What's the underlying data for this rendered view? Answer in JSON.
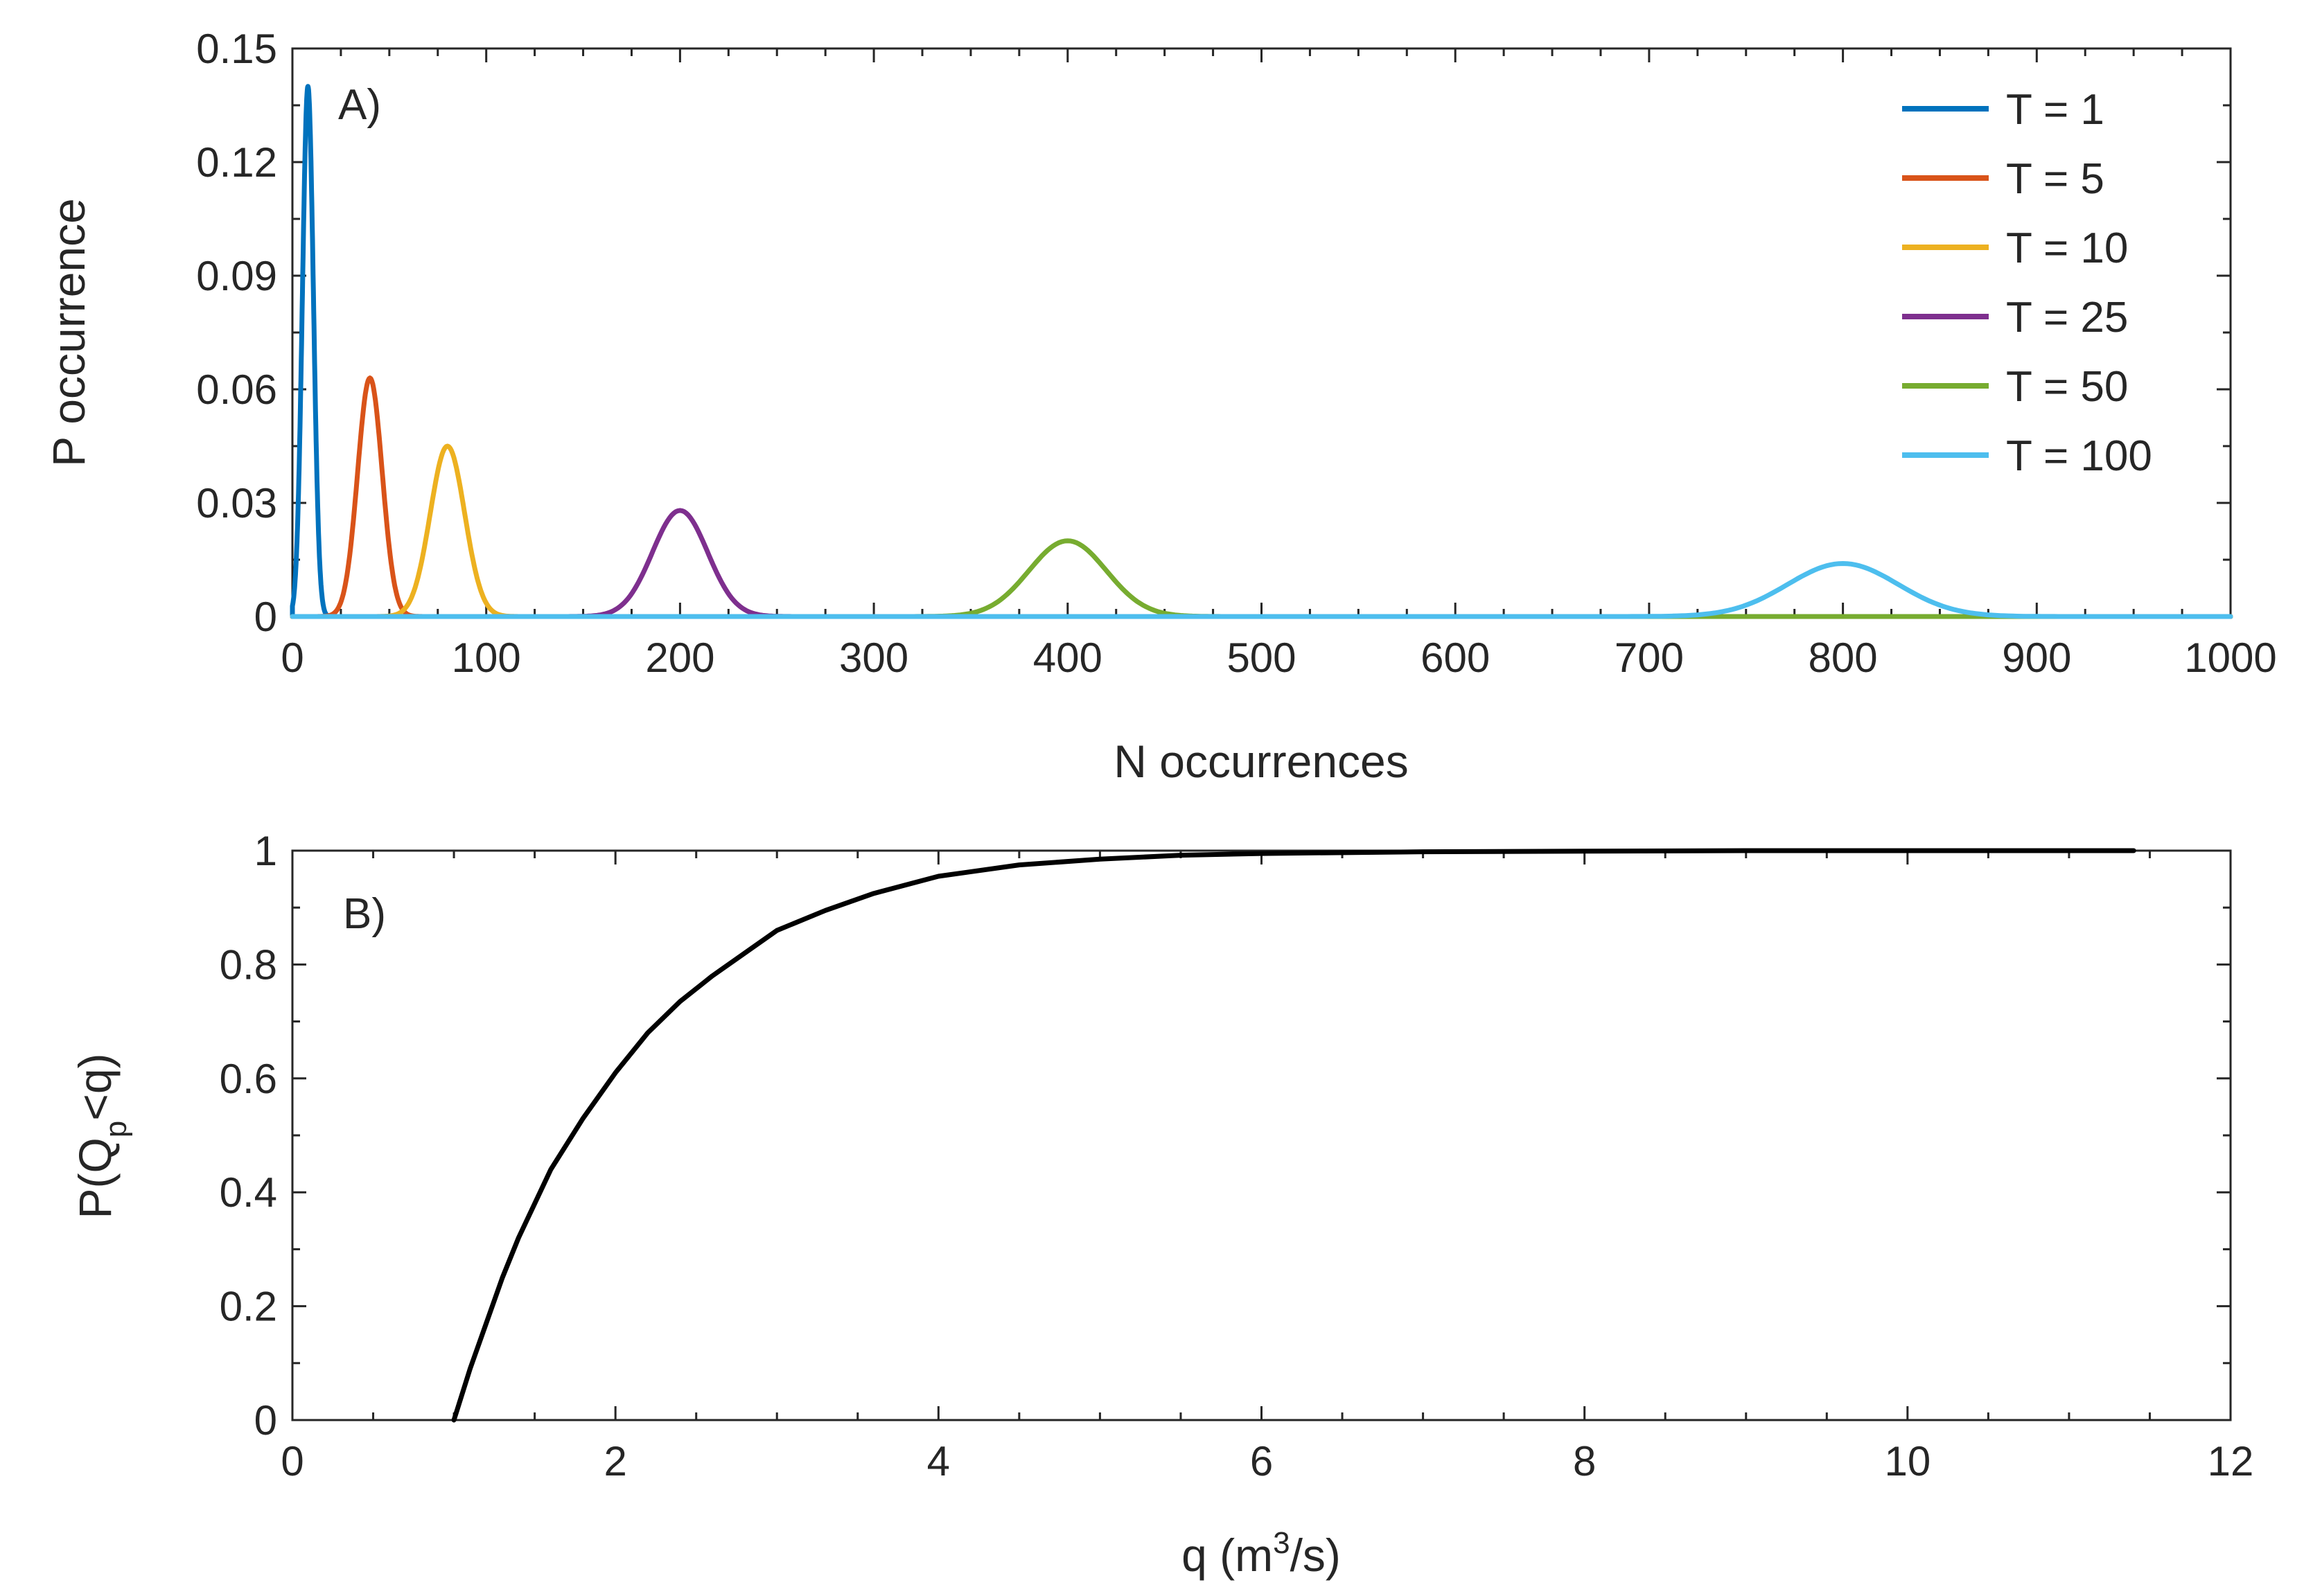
{
  "chart_data": [
    {
      "panel": "A)",
      "type": "line",
      "title": "",
      "xlabel": "N occurrences",
      "ylabel": "P occurrence",
      "xlim": [
        0,
        1000
      ],
      "ylim": [
        0,
        0.15
      ],
      "xticks": [
        0,
        100,
        200,
        300,
        400,
        500,
        600,
        700,
        800,
        900,
        1000
      ],
      "yticks": [
        0,
        0.03,
        0.06,
        0.09,
        0.12,
        0.15
      ],
      "ytick_labels": [
        "0",
        "0.03",
        "0.06",
        "0.09",
        "0.12",
        "0.15"
      ],
      "legend_position": "top-right",
      "series": [
        {
          "name": "T = 1",
          "color": "#0072BD",
          "mean": 8,
          "peak": 0.14
        },
        {
          "name": "T = 5",
          "color": "#D95319",
          "mean": 40,
          "peak": 0.063
        },
        {
          "name": "T = 10",
          "color": "#EDB120",
          "mean": 80,
          "peak": 0.045
        },
        {
          "name": "T = 25",
          "color": "#7E2F8E",
          "mean": 200,
          "peak": 0.028
        },
        {
          "name": "T = 50",
          "color": "#77AC30",
          "mean": 400,
          "peak": 0.02
        },
        {
          "name": "T = 100",
          "color": "#4DBEEE",
          "mean": 800,
          "peak": 0.014
        }
      ]
    },
    {
      "panel": "B)",
      "type": "line",
      "title": "",
      "xlabel_parts": [
        "q (m",
        "3",
        "/s)"
      ],
      "ylabel_parts": [
        "P(Q",
        "p",
        "<q)"
      ],
      "xlim": [
        0,
        12
      ],
      "ylim": [
        0,
        1
      ],
      "xticks": [
        0,
        2,
        4,
        6,
        8,
        10,
        12
      ],
      "yticks": [
        0,
        0.2,
        0.4,
        0.6,
        0.8,
        1
      ],
      "ytick_labels": [
        "0",
        "0.2",
        "0.4",
        "0.6",
        "0.8",
        "1"
      ],
      "series": [
        {
          "name": "P(Qp<q)",
          "color": "#000000",
          "x": [
            1.0,
            1.1,
            1.2,
            1.3,
            1.4,
            1.5,
            1.6,
            1.8,
            2.0,
            2.2,
            2.4,
            2.6,
            2.8,
            3.0,
            3.3,
            3.6,
            4.0,
            4.5,
            5.0,
            5.5,
            6.0,
            7.0,
            8.0,
            9.0,
            10.0,
            11.4
          ],
          "y": [
            0.0,
            0.09,
            0.17,
            0.25,
            0.32,
            0.38,
            0.44,
            0.53,
            0.61,
            0.68,
            0.735,
            0.78,
            0.82,
            0.86,
            0.895,
            0.925,
            0.955,
            0.975,
            0.985,
            0.992,
            0.995,
            0.998,
            0.999,
            1.0,
            1.0,
            1.0
          ]
        }
      ]
    }
  ]
}
